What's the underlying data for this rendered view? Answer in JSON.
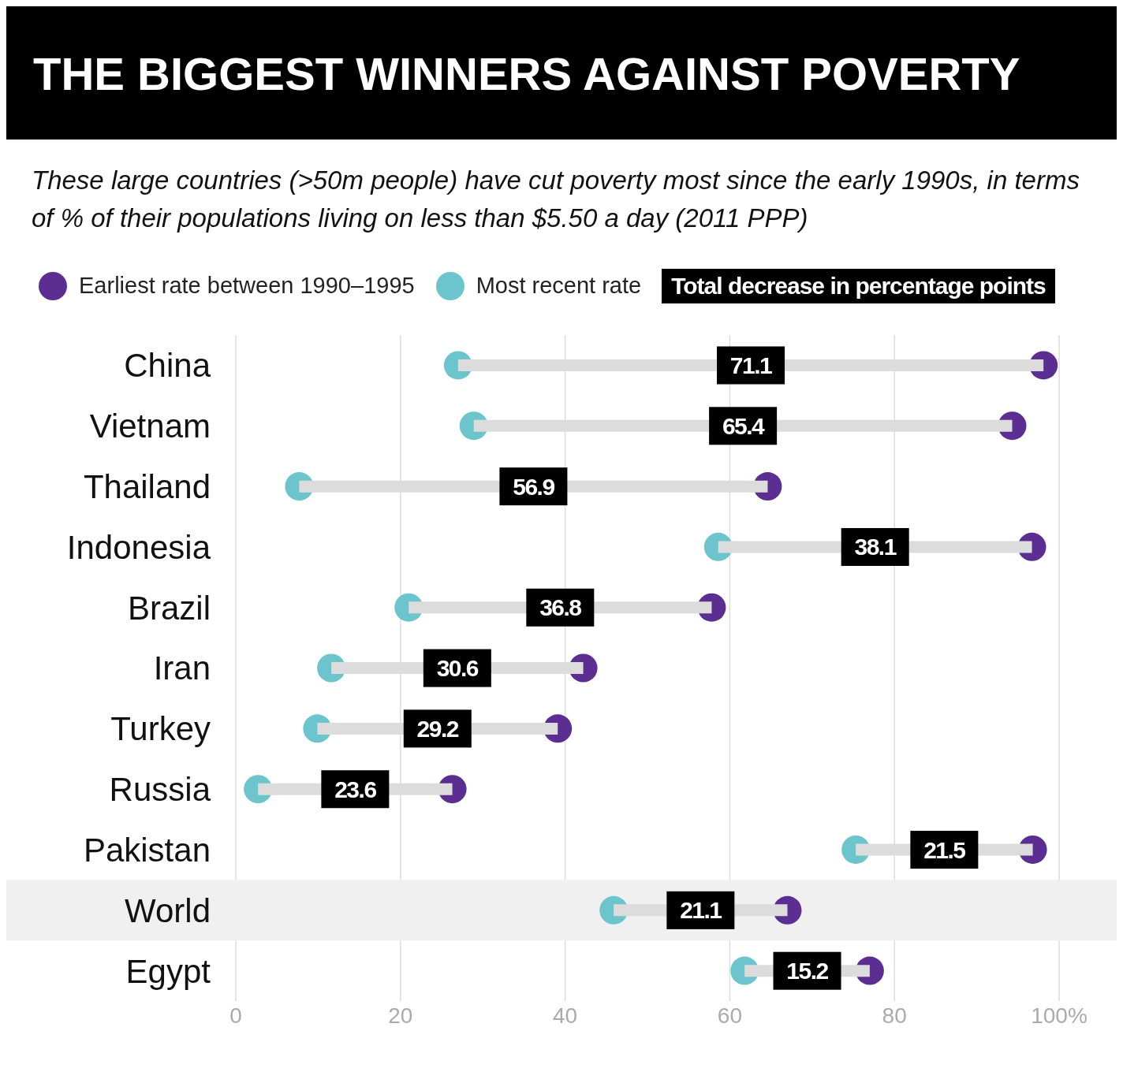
{
  "chart_data": {
    "type": "scatter",
    "orientation": "horizontal",
    "title": "THE BIGGEST WINNERS AGAINST POVERTY",
    "subtitle": "These large countries (>50m people) have cut poverty most since the early 1990s, in terms of % of their populations living on less than $5.50 a day (2011 PPP)",
    "categories": [
      "China",
      "Vietnam",
      "Thailand",
      "Indonesia",
      "Brazil",
      "Iran",
      "Turkey",
      "Russia",
      "Pakistan",
      "World",
      "Egypt"
    ],
    "series": [
      {
        "type": "scatter",
        "name": "Earliest rate between 1990–1995",
        "color": "#5c2e91",
        "values": [
          98.1,
          94.3,
          64.6,
          96.7,
          57.8,
          42.2,
          39.1,
          26.3,
          96.8,
          67.0,
          77.0
        ]
      },
      {
        "type": "scatter",
        "name": "Most recent rate",
        "color": "#6cc4cd",
        "values": [
          27.0,
          28.9,
          7.7,
          58.6,
          21.0,
          11.6,
          9.9,
          2.7,
          75.3,
          45.9,
          61.8
        ]
      },
      {
        "type": "bar",
        "name": "Total decrease in percentage points",
        "color": "#dcdcdc",
        "base": [
          27.0,
          28.9,
          7.7,
          58.6,
          21.0,
          11.6,
          9.9,
          2.7,
          75.3,
          45.9,
          61.8
        ],
        "values": [
          71.1,
          65.4,
          56.9,
          38.1,
          36.8,
          30.6,
          29.2,
          23.6,
          21.5,
          21.1,
          15.2
        ],
        "value_labels": [
          "71.1",
          "65.4",
          "56.9",
          "38.1",
          "36.8",
          "30.6",
          "29.2",
          "23.6",
          "21.5",
          "21.1",
          "15.2"
        ]
      }
    ],
    "xlim": [
      0,
      100
    ],
    "xticks": [
      0,
      20,
      40,
      60,
      80,
      {
        "value": 100,
        "label": "100%"
      }
    ],
    "grid": "x",
    "legend": "top left",
    "bands": [
      {
        "axis": "y",
        "from": "World",
        "to": "World",
        "color": "#f0f0f0"
      }
    ]
  }
}
